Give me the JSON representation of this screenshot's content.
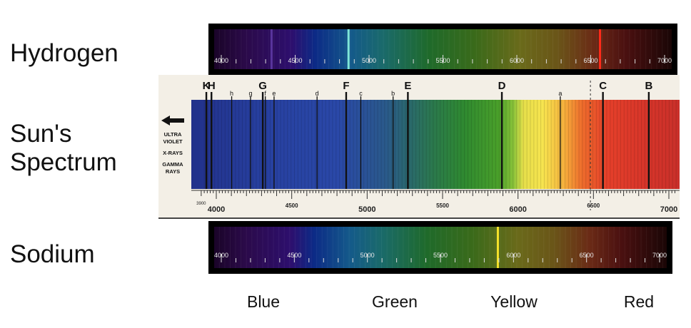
{
  "rows": {
    "hydrogen": "Hydrogen",
    "sun": "Sun's\nSpectrum",
    "sodium": "Sodium"
  },
  "sun_labels": {
    "ultra": "ULTRA",
    "violet": "VIOLET",
    "xrays": "X-RAYS",
    "gamma": "GAMMA",
    "rays": "RAYS",
    "start_tick": "3900"
  },
  "ticks": [
    "4000",
    "4500",
    "5000",
    "5500",
    "6000",
    "6500",
    "7000"
  ],
  "color_bands": {
    "blue": "Blue",
    "green": "Green",
    "yellow": "Yellow",
    "red": "Red"
  },
  "hydrogen_lines": [
    4861,
    6563,
    4340
  ],
  "sodium_lines": [
    5893
  ],
  "fraunhofer": [
    {
      "label": "K",
      "wl": 3934,
      "big": true
    },
    {
      "label": "H",
      "wl": 3968,
      "big": true
    },
    {
      "label": "h",
      "wl": 4102,
      "big": false
    },
    {
      "label": "g",
      "wl": 4227,
      "big": false
    },
    {
      "label": "G",
      "wl": 4308,
      "big": true
    },
    {
      "label": "f",
      "wl": 4325,
      "big": false
    },
    {
      "label": "e",
      "wl": 4383,
      "big": false
    },
    {
      "label": "d",
      "wl": 4668,
      "big": false
    },
    {
      "label": "F",
      "wl": 4861,
      "big": true
    },
    {
      "label": "c",
      "wl": 4958,
      "big": false
    },
    {
      "label": "b",
      "wl": 5172,
      "big": false
    },
    {
      "label": "E",
      "wl": 5270,
      "big": true
    },
    {
      "label": "D",
      "wl": 5893,
      "big": true
    },
    {
      "label": "a",
      "wl": 6280,
      "big": false
    },
    {
      "label": "C",
      "wl": 6563,
      "big": true
    },
    {
      "label": "B",
      "wl": 6867,
      "big": true
    }
  ],
  "colors": {
    "hydrogen_line": "#7fe6d8",
    "hydrogen_red_line": "#ff2a1a",
    "sodium_line": "#f6e22a"
  }
}
